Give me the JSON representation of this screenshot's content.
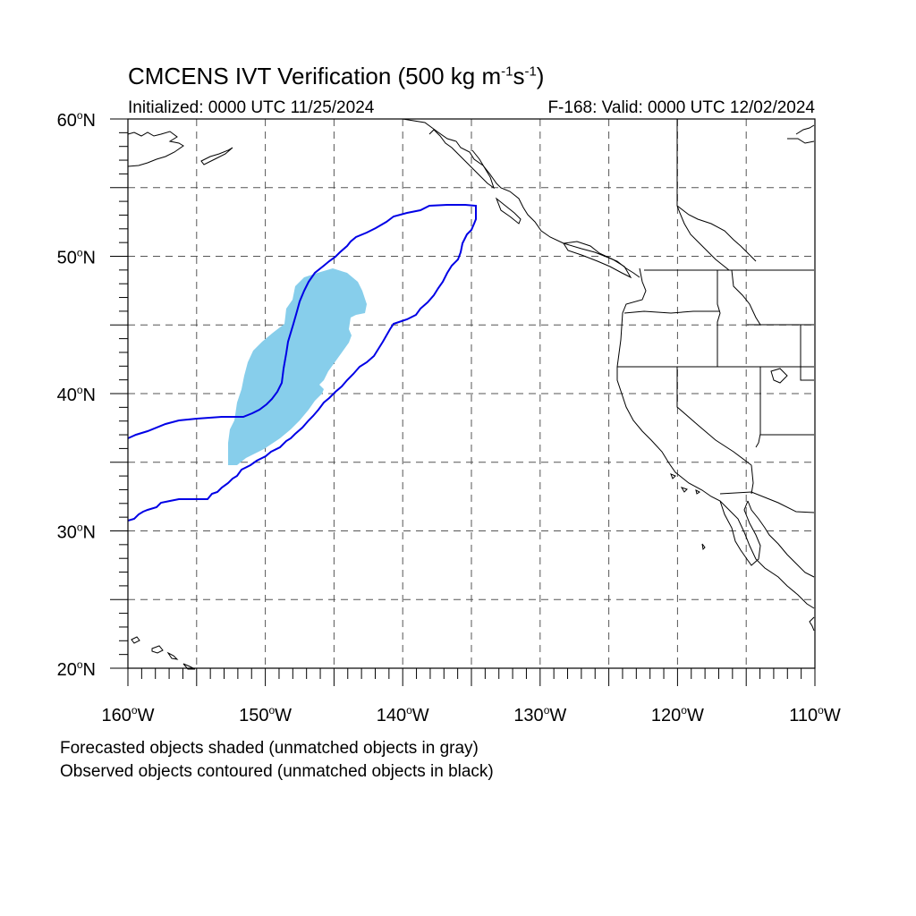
{
  "title": {
    "main": "CMCENS IVT Verification (500 kg m",
    "sup1": "-1",
    "mid": "s",
    "sup2": "-1",
    "end": ")"
  },
  "initialized": "Initialized: 0000 UTC 11/25/2024",
  "valid": "F-168: Valid: 0000 UTC 12/02/2024",
  "map": {
    "projection": "cylindrical-equidistant",
    "lon_range": [
      -160,
      -110
    ],
    "lat_range": [
      20,
      60
    ],
    "lat_labels": [
      {
        "lat": 60,
        "text": "60",
        "hemi": "N"
      },
      {
        "lat": 50,
        "text": "50",
        "hemi": "N"
      },
      {
        "lat": 40,
        "text": "40",
        "hemi": "N"
      },
      {
        "lat": 30,
        "text": "30",
        "hemi": "N"
      },
      {
        "lat": 20,
        "text": "20",
        "hemi": "N"
      }
    ],
    "lon_labels": [
      {
        "lon": -160,
        "text": "160",
        "hemi": "W"
      },
      {
        "lon": -150,
        "text": "150",
        "hemi": "W"
      },
      {
        "lon": -140,
        "text": "140",
        "hemi": "W"
      },
      {
        "lon": -130,
        "text": "130",
        "hemi": "W"
      },
      {
        "lon": -120,
        "text": "120",
        "hemi": "W"
      },
      {
        "lon": -110,
        "text": "110",
        "hemi": "W"
      }
    ],
    "grid_spacing_deg": 5,
    "colors": {
      "forecast_fill": "#87ceeb",
      "observed_contour": "#0000e6",
      "coastline": "#000000",
      "grid": "#555555"
    }
  },
  "legend_note_1": "Forecasted objects shaded (unmatched objects in gray)",
  "legend_note_2": "Observed objects contoured (unmatched objects in black)"
}
